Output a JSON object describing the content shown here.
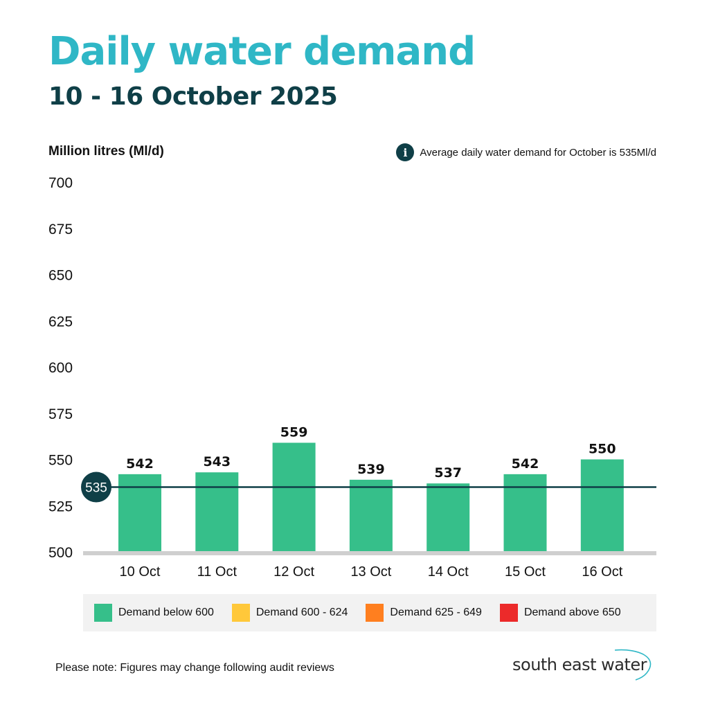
{
  "title": "Daily water demand",
  "subtitle": "10 - 16 October 2025",
  "unit_label": "Million litres (Ml/d)",
  "avg_note": {
    "icon": "info-icon",
    "glyph": "i",
    "text": "Average daily water demand for October is 535Ml/d"
  },
  "chart_data": {
    "type": "bar",
    "title": "Daily water demand",
    "subtitle": "10 - 16 October 2025",
    "ylabel": "Million litres (Ml/d)",
    "xlabel": "",
    "ylim": [
      500,
      700
    ],
    "yticks": [
      500,
      525,
      550,
      575,
      600,
      625,
      650,
      675,
      700
    ],
    "categories": [
      "10 Oct",
      "11 Oct",
      "12 Oct",
      "13 Oct",
      "14 Oct",
      "15 Oct",
      "16 Oct"
    ],
    "values": [
      542,
      543,
      559,
      539,
      537,
      542,
      550
    ],
    "reference_line": {
      "label": "535",
      "value": 535
    },
    "bar_color": "#36bf8a",
    "reference_color": "#0f3f47",
    "axis_color": "#cfcfcf",
    "grid": false
  },
  "legend": [
    {
      "label": "Demand below 600",
      "color": "#36bf8a"
    },
    {
      "label": "Demand 600 - 624",
      "color": "#ffc83a"
    },
    {
      "label": "Demand 625 - 649",
      "color": "#ff7f1f"
    },
    {
      "label": "Demand above 650",
      "color": "#ec2a2a"
    }
  ],
  "footnote": "Please note: Figures may change following audit reviews",
  "logo": {
    "text": "south east water",
    "color": "#2fb7c6"
  }
}
